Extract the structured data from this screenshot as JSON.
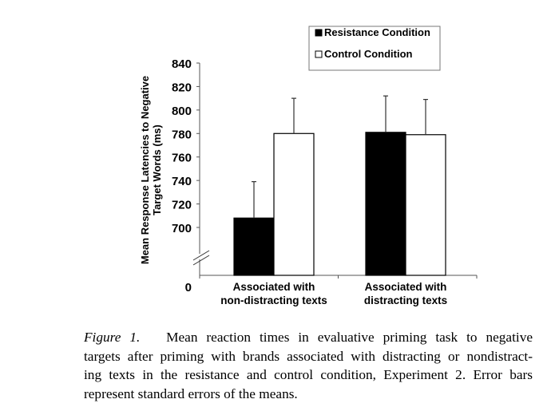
{
  "chart_data": {
    "type": "bar",
    "title": "",
    "ylabel": [
      "Mean Response Latencies to Negative",
      "Target Words (ms)"
    ],
    "xlabel": "",
    "categories": [
      [
        "Associated with",
        "non-distracting texts"
      ],
      [
        "Associated with",
        "distracting texts"
      ]
    ],
    "yticks": [
      "0",
      "700",
      "720",
      "740",
      "760",
      "780",
      "800",
      "820",
      "840"
    ],
    "ylim": [
      680,
      840
    ],
    "axis_break": true,
    "legend_position": "top-right",
    "series": [
      {
        "name": "Resistance Condition",
        "color": "#000000",
        "values": [
          708,
          781
        ],
        "error_upper": [
          739,
          812
        ]
      },
      {
        "name": "Control Condition",
        "color": "#ffffff",
        "values": [
          780,
          779
        ],
        "error_upper": [
          810,
          809
        ]
      }
    ],
    "grid": false
  },
  "caption": {
    "label": "Figure 1.",
    "lines": [
      "Mean reaction times in evaluative priming task to negative",
      "targets after priming with brands associated with distracting or nondistract-",
      "ing texts in the resistance and control condition, Experiment 2. Error bars",
      "represent standard errors of the means."
    ]
  }
}
